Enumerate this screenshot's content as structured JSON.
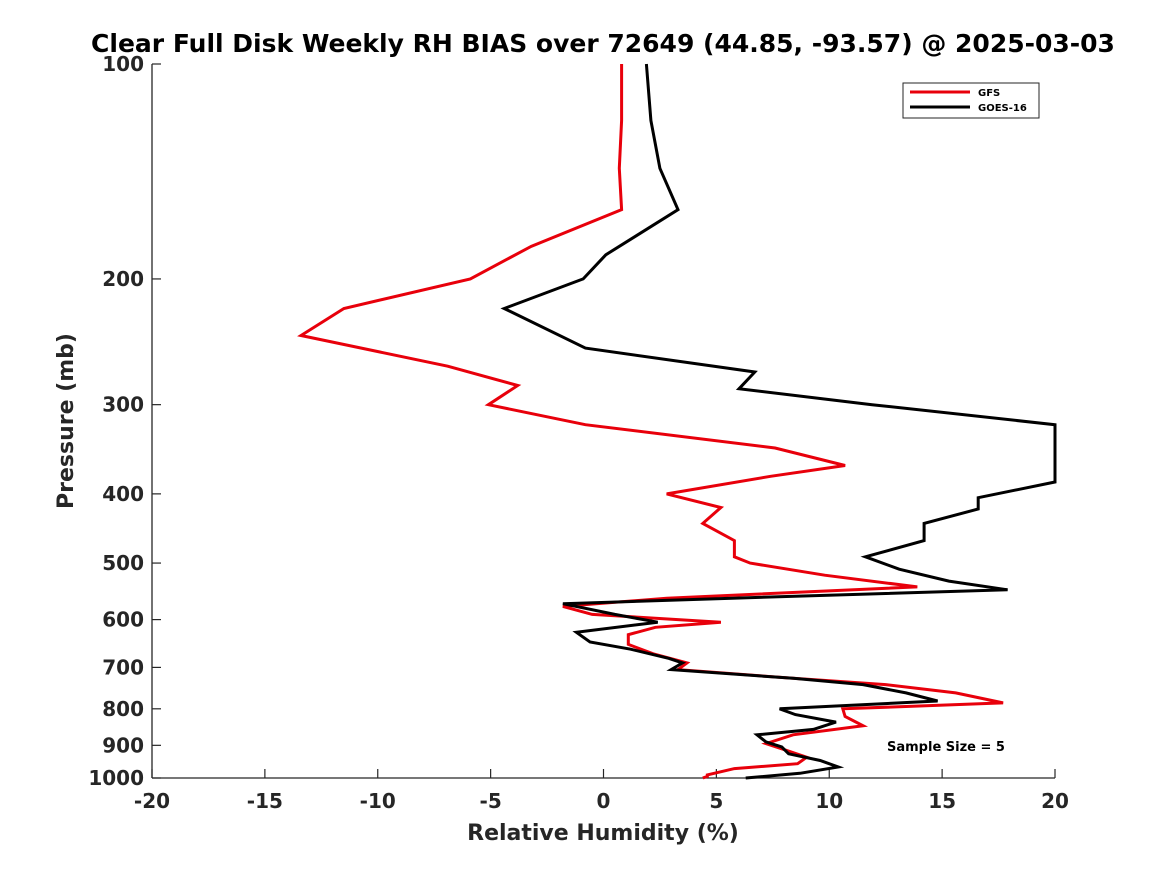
{
  "chart_data": {
    "type": "line",
    "title": "Clear Full Disk Weekly RH BIAS over 72649 (44.85, -93.57) @ 2025-03-03",
    "xlabel": "Relative Humidity (%)",
    "ylabel": "Pressure (mb)",
    "xlim": [
      -20,
      20
    ],
    "ylim": [
      100,
      1000
    ],
    "yscale": "log",
    "y_reversed": true,
    "xticks": [
      -20,
      -15,
      -10,
      -5,
      0,
      5,
      10,
      15,
      20
    ],
    "yticks": [
      100,
      200,
      300,
      400,
      500,
      600,
      700,
      800,
      900,
      1000
    ],
    "legend_position": "top-right",
    "annotation": "Sample Size = 5",
    "series": [
      {
        "name": "GFS",
        "color": "#e8000b",
        "points": [
          [
            0.8,
            100
          ],
          [
            0.8,
            120
          ],
          [
            0.7,
            140
          ],
          [
            0.8,
            160
          ],
          [
            -3.2,
            180
          ],
          [
            -5.9,
            200
          ],
          [
            -11.5,
            220
          ],
          [
            -13.4,
            240
          ],
          [
            -6.9,
            265
          ],
          [
            -3.8,
            282
          ],
          [
            -5.1,
            300
          ],
          [
            -0.8,
            320
          ],
          [
            7.6,
            345
          ],
          [
            10.7,
            365
          ],
          [
            7.4,
            378
          ],
          [
            2.8,
            400
          ],
          [
            5.2,
            418
          ],
          [
            4.4,
            440
          ],
          [
            5.8,
            465
          ],
          [
            5.8,
            490
          ],
          [
            6.5,
            500
          ],
          [
            9.8,
            520
          ],
          [
            13.9,
            540
          ],
          [
            2.8,
            560
          ],
          [
            -1.8,
            575
          ],
          [
            -0.5,
            590
          ],
          [
            5.2,
            605
          ],
          [
            2.3,
            615
          ],
          [
            1.1,
            630
          ],
          [
            1.1,
            650
          ],
          [
            2.2,
            670
          ],
          [
            3.7,
            690
          ],
          [
            3.3,
            705
          ],
          [
            8.4,
            725
          ],
          [
            12.5,
            740
          ],
          [
            15.6,
            760
          ],
          [
            17.7,
            785
          ],
          [
            10.6,
            800
          ],
          [
            10.7,
            820
          ],
          [
            11.5,
            845
          ],
          [
            8.4,
            870
          ],
          [
            7.2,
            895
          ],
          [
            7.9,
            910
          ],
          [
            9.0,
            935
          ],
          [
            8.6,
            955
          ],
          [
            5.8,
            970
          ],
          [
            4.6,
            990
          ],
          [
            4.6,
            995
          ],
          [
            4.4,
            1000
          ]
        ]
      },
      {
        "name": "GOES-16",
        "color": "#000000",
        "points": [
          [
            1.9,
            100
          ],
          [
            2.1,
            120
          ],
          [
            2.5,
            140
          ],
          [
            3.3,
            160
          ],
          [
            0.1,
            185
          ],
          [
            -0.9,
            200
          ],
          [
            -4.4,
            220
          ],
          [
            -0.8,
            250
          ],
          [
            6.7,
            270
          ],
          [
            6.0,
            285
          ],
          [
            11.9,
            300
          ],
          [
            20.0,
            320
          ],
          [
            20.0,
            385
          ],
          [
            16.6,
            405
          ],
          [
            16.6,
            420
          ],
          [
            14.2,
            440
          ],
          [
            14.2,
            465
          ],
          [
            11.6,
            490
          ],
          [
            13.1,
            510
          ],
          [
            15.3,
            530
          ],
          [
            17.9,
            545
          ],
          [
            5.7,
            560
          ],
          [
            -1.8,
            570
          ],
          [
            0.5,
            590
          ],
          [
            2.4,
            605
          ],
          [
            -1.2,
            625
          ],
          [
            -0.6,
            645
          ],
          [
            1.2,
            660
          ],
          [
            2.9,
            680
          ],
          [
            3.5,
            690
          ],
          [
            3.0,
            705
          ],
          [
            8.4,
            725
          ],
          [
            11.5,
            740
          ],
          [
            13.4,
            760
          ],
          [
            14.8,
            780
          ],
          [
            7.8,
            800
          ],
          [
            8.5,
            815
          ],
          [
            10.3,
            835
          ],
          [
            9.3,
            855
          ],
          [
            6.8,
            870
          ],
          [
            7.2,
            890
          ],
          [
            7.9,
            905
          ],
          [
            8.2,
            925
          ],
          [
            9.6,
            945
          ],
          [
            10.4,
            965
          ],
          [
            8.7,
            985
          ],
          [
            6.3,
            1000
          ]
        ]
      }
    ]
  }
}
